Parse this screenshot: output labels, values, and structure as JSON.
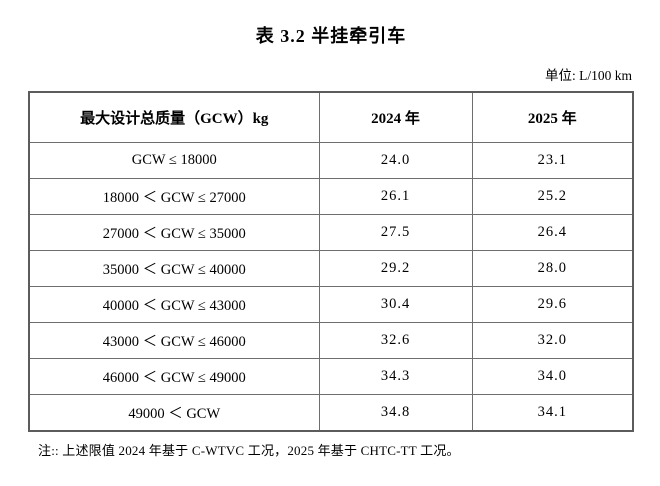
{
  "page": {
    "title": "表 3.2 半挂牵引车",
    "unit_label": "单位: L/100 km",
    "note": "注:: 上述限值 2024 年基于 C-WTVC 工况，2025 年基于 CHTC-TT 工况。"
  },
  "table": {
    "columns": [
      "最大设计总质量（GCW）kg",
      "2024 年",
      "2025 年"
    ],
    "rows": [
      {
        "range": "GCW ≤ 18000",
        "y2024": "24.0",
        "y2025": "23.1"
      },
      {
        "range": "18000 ＜ GCW ≤ 27000",
        "y2024": "26.1",
        "y2025": "25.2"
      },
      {
        "range": "27000 ＜ GCW ≤ 35000",
        "y2024": "27.5",
        "y2025": "26.4"
      },
      {
        "range": "35000 ＜ GCW ≤ 40000",
        "y2024": "29.2",
        "y2025": "28.0"
      },
      {
        "range": "40000 ＜ GCW ≤ 43000",
        "y2024": "30.4",
        "y2025": "29.6"
      },
      {
        "range": "43000 ＜ GCW ≤ 46000",
        "y2024": "32.6",
        "y2025": "32.0"
      },
      {
        "range": "46000 ＜ GCW ≤ 49000",
        "y2024": "34.3",
        "y2025": "34.0"
      },
      {
        "range": "49000 ＜ GCW",
        "y2024": "34.8",
        "y2025": "34.1"
      }
    ]
  },
  "colors": {
    "background": "#ffffff",
    "text": "#000000",
    "table_border_outer": "#5c5c5c",
    "table_border_inner": "#6e6e6e"
  }
}
